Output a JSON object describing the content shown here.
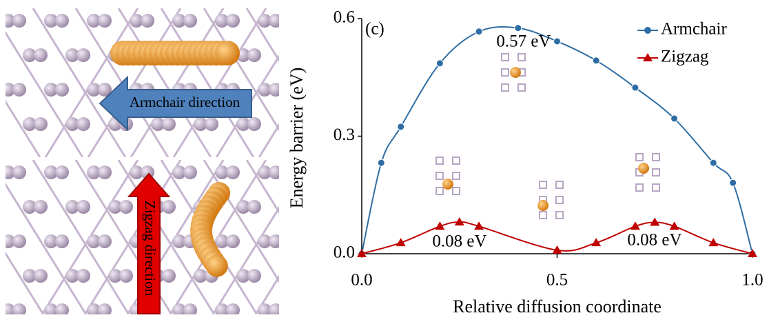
{
  "left_panels": {
    "top_label": "Armchair direction",
    "bottom_label": "Zigzag direction"
  },
  "chart_data": {
    "type": "line",
    "xlabel": "Relative diffusion coordinate",
    "ylabel": "Energy barrier (eV)",
    "annotations": [
      "(c)",
      "0.57 eV",
      "0.08 eV",
      "0.08 eV"
    ],
    "xlim": [
      0,
      1
    ],
    "ylim": [
      0,
      0.6
    ],
    "xticks": [
      {
        "value": 0,
        "label": "0.0"
      },
      0.5,
      {
        "value": 1,
        "label": "1.0"
      }
    ],
    "yticks": [
      {
        "value": 0,
        "label": "0.0"
      },
      0.3,
      0.6
    ],
    "legend": "upper right",
    "series": [
      {
        "name": "Armchair",
        "color": "#2e6da4",
        "marker": "circle",
        "x": [
          0,
          0.05,
          0.1,
          0.2,
          0.3,
          0.4,
          0.5,
          0.6,
          0.7,
          0.8,
          0.9,
          0.95,
          1.0
        ],
        "values": [
          0,
          0.232,
          0.324,
          0.486,
          0.567,
          0.576,
          0.542,
          0.493,
          0.424,
          0.345,
          0.232,
          0.181,
          0
        ]
      },
      {
        "name": "Zigzag",
        "color": "#c00000",
        "marker": "triangle",
        "x": [
          0,
          0.1,
          0.2,
          0.25,
          0.3,
          0.5,
          0.6,
          0.7,
          0.75,
          0.8,
          0.9,
          1.0
        ],
        "values": [
          0,
          0.028,
          0.07,
          0.081,
          0.07,
          0.009,
          0.028,
          0.07,
          0.08,
          0.07,
          0.028,
          0
        ]
      }
    ]
  }
}
